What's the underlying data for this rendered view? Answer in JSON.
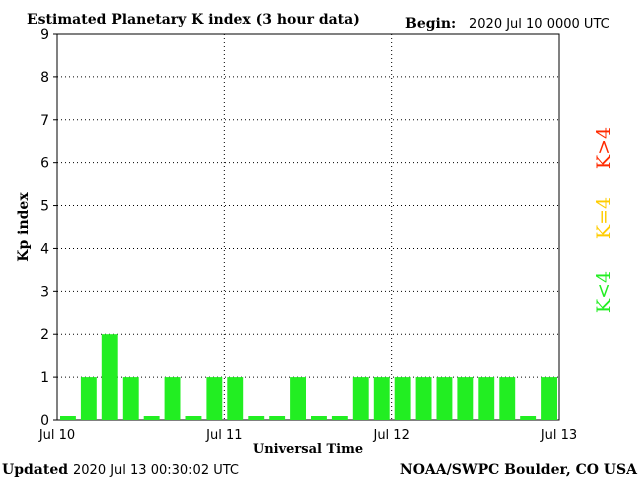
{
  "header": {
    "title": "Estimated Planetary K index (3 hour data)",
    "begin_label": "Begin:",
    "begin_value": "2020 Jul 10 0000 UTC"
  },
  "footer": {
    "updated_label": "Updated",
    "updated_value": "2020 Jul 13 00:30:02 UTC",
    "source": "NOAA/SWPC Boulder, CO USA"
  },
  "legend": {
    "low": {
      "label": "K<4",
      "color": "#22ee22"
    },
    "mid": {
      "label": "K=4",
      "color": "#ffcc00"
    },
    "high": {
      "label": "K>4",
      "color": "#ff2a00"
    }
  },
  "chart_data": {
    "type": "bar",
    "title": "Estimated Planetary K index (3 hour data)",
    "xlabel": "Universal Time",
    "ylabel": "Kp index",
    "ylim": [
      0,
      9
    ],
    "yticks": [
      0,
      1,
      2,
      3,
      4,
      5,
      6,
      7,
      8,
      9
    ],
    "xticks": [
      "Jul 10",
      "Jul 11",
      "Jul 12",
      "Jul 13"
    ],
    "bar_interval_hours": 3,
    "grid": true,
    "bar_color": "#22ee22",
    "values": [
      0,
      1,
      2,
      1,
      0,
      1,
      0,
      1,
      1,
      0,
      0,
      1,
      0,
      0,
      1,
      1,
      1,
      1,
      1,
      1,
      1,
      1,
      0,
      1
    ]
  }
}
